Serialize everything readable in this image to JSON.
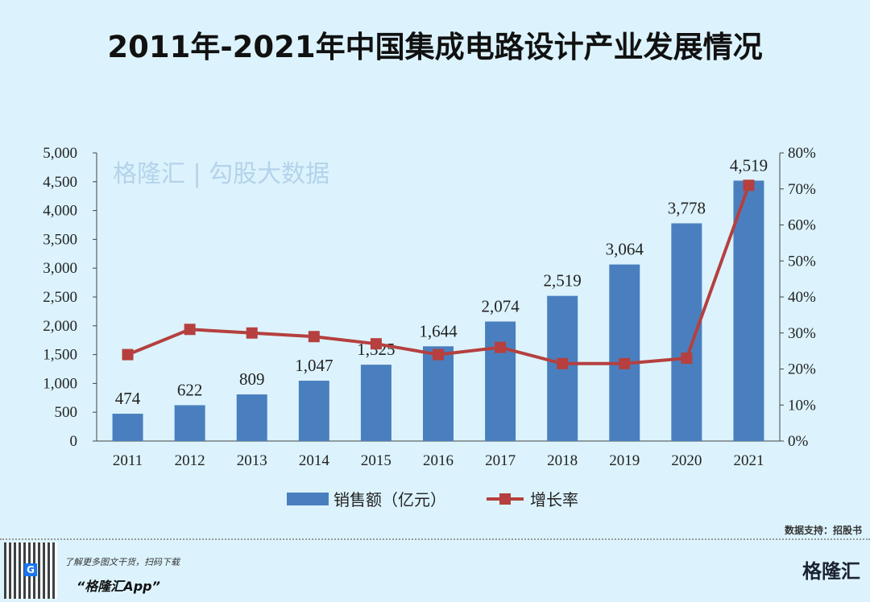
{
  "title": "2011年-2021年中国集成电路设计产业发展情况",
  "chart_data": {
    "type": "bar+line",
    "categories": [
      "2011",
      "2012",
      "2013",
      "2014",
      "2015",
      "2016",
      "2017",
      "2018",
      "2019",
      "2020",
      "2021"
    ],
    "series": [
      {
        "name": "销售额（亿元）",
        "type": "bar",
        "axis": "left",
        "color": "#4a7fbf",
        "values": [
          474,
          622,
          809,
          1047,
          1325,
          1644,
          2074,
          2519,
          3064,
          3778,
          4519
        ],
        "labels": [
          "474",
          "622",
          "809",
          "1,047",
          "1,325",
          "1,644",
          "2,074",
          "2,519",
          "3,064",
          "3,778",
          "4,519"
        ]
      },
      {
        "name": "增长率",
        "type": "line",
        "axis": "right",
        "color": "#b5403f",
        "values": [
          24,
          31,
          30,
          29,
          27,
          24,
          26,
          21.5,
          21.5,
          23,
          71
        ]
      }
    ],
    "ylim": [
      0,
      5000
    ],
    "y2lim": [
      0,
      80
    ],
    "yticks": [
      "0",
      "500",
      "1,000",
      "1,500",
      "2,000",
      "2,500",
      "3,000",
      "3,500",
      "4,000",
      "4,500",
      "5,000"
    ],
    "y2ticks": [
      "0%",
      "10%",
      "20%",
      "30%",
      "40%",
      "50%",
      "60%",
      "70%",
      "80%"
    ],
    "legend": "bottom",
    "grid": false
  },
  "watermark": "格隆汇 | 勾股大数据",
  "source": "数据支持：招股书",
  "footer": {
    "promo_line": "了解更多图文干货，扫码下载",
    "app_name": "“格隆汇App”",
    "logo": "格隆汇",
    "qr_badge": "G"
  }
}
